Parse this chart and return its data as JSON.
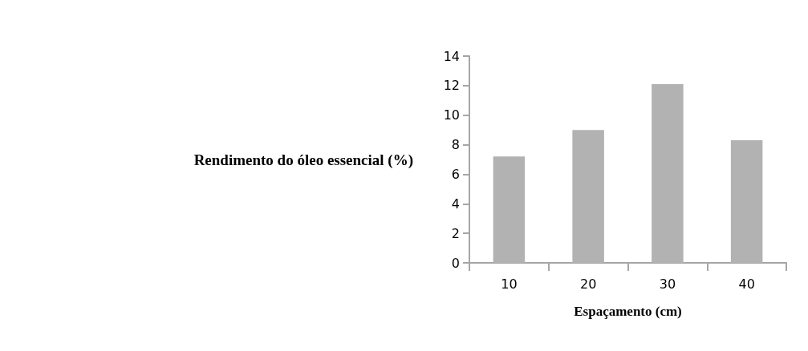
{
  "chart_data": {
    "type": "bar",
    "xlabel": "Espaçamento (cm)",
    "ylabel": "Rendimento do óleo essencial (%)",
    "categories": [
      "10",
      "20",
      "30",
      "40"
    ],
    "values": [
      7.2,
      9.0,
      12.1,
      8.3
    ],
    "color": "#b2b2b2",
    "ylim": [
      0,
      14
    ],
    "yticks": [
      0,
      2,
      4,
      6,
      8,
      10,
      12,
      14
    ],
    "grid": false
  }
}
